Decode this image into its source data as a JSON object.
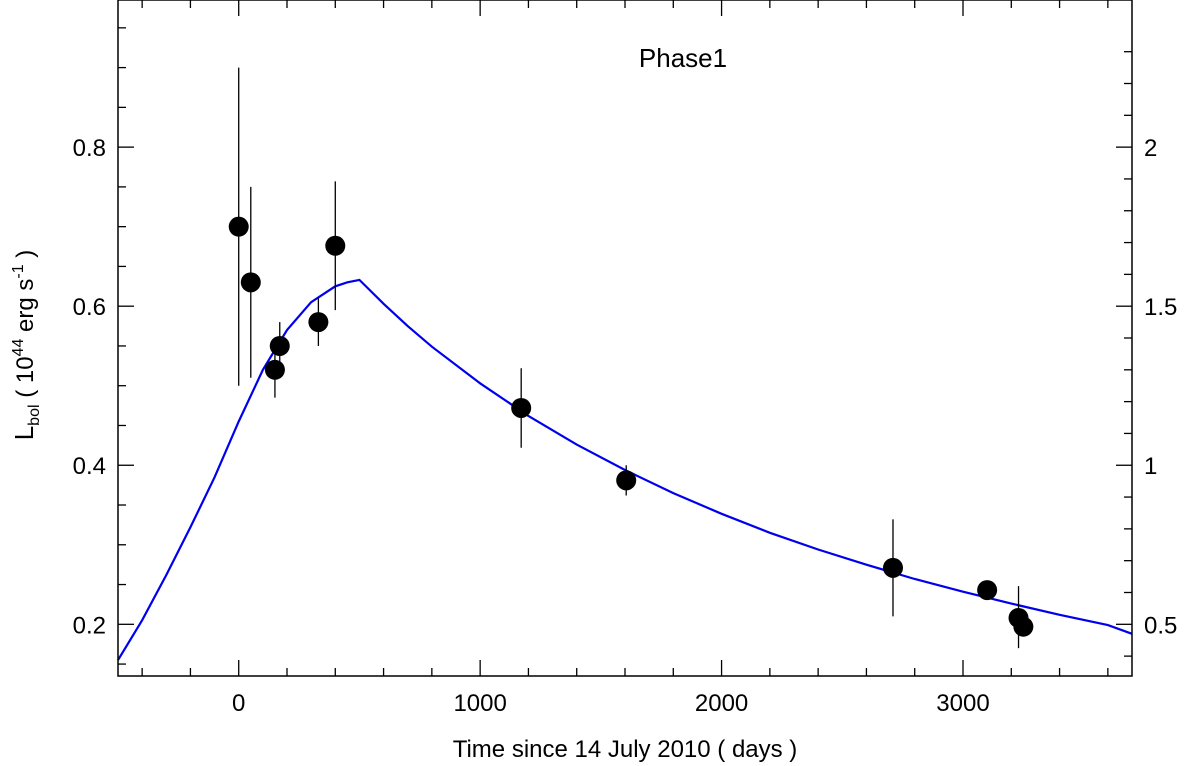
{
  "chart_data": {
    "type": "scatter",
    "title": "Phase1",
    "xlabel": "Time since 14 July 2010 ( days )",
    "ylabel": {
      "base": "L",
      "sub": "bol",
      "open": " ( 10",
      "exp": "44",
      "unit": " erg s",
      "unit_exp": "-1",
      "close": " )"
    },
    "xlim": [
      -500,
      3700
    ],
    "ylim": [
      0.135,
      0.985
    ],
    "xticks": [
      0,
      1000,
      2000,
      3000
    ],
    "xtick_labels": [
      "0",
      "1000",
      "2000",
      "3000"
    ],
    "yticks": [
      0.2,
      0.4,
      0.6,
      0.8
    ],
    "ytick_labels": [
      "0.2",
      "0.4",
      "0.6",
      "0.8"
    ],
    "y2_scale": 0.4,
    "y2ticks": [
      0.5,
      1,
      1.5,
      2
    ],
    "y2tick_labels": [
      "0.5",
      "1",
      "1.5",
      "2"
    ],
    "series": [
      {
        "name": "observations",
        "points": [
          {
            "x": 0,
            "y": 0.7,
            "ylo": 0.5,
            "yhi": 0.9
          },
          {
            "x": 50,
            "y": 0.63,
            "ylo": 0.51,
            "yhi": 0.75
          },
          {
            "x": 150,
            "y": 0.52,
            "ylo": 0.485,
            "yhi": 0.555,
            "xerr": 30
          },
          {
            "x": 170,
            "y": 0.55,
            "ylo": 0.52,
            "yhi": 0.58
          },
          {
            "x": 330,
            "y": 0.58,
            "ylo": 0.55,
            "yhi": 0.61
          },
          {
            "x": 400,
            "y": 0.676,
            "ylo": 0.595,
            "yhi": 0.757
          },
          {
            "x": 1170,
            "y": 0.472,
            "ylo": 0.422,
            "yhi": 0.522
          },
          {
            "x": 1605,
            "y": 0.381,
            "ylo": 0.362,
            "yhi": 0.4
          },
          {
            "x": 2710,
            "y": 0.271,
            "ylo": 0.21,
            "yhi": 0.332
          },
          {
            "x": 3100,
            "y": 0.243
          },
          {
            "x": 3230,
            "y": 0.208,
            "ylo": 0.17,
            "yhi": 0.248
          },
          {
            "x": 3250,
            "y": 0.197
          }
        ]
      },
      {
        "name": "model",
        "color": "#0000ee",
        "x": [
          -500,
          -400,
          -300,
          -200,
          -100,
          0,
          100,
          200,
          300,
          400,
          450,
          500,
          600,
          700,
          800,
          1000,
          1200,
          1400,
          1600,
          1800,
          2000,
          2200,
          2400,
          2600,
          2800,
          3000,
          3200,
          3400,
          3600,
          3700
        ],
        "y": [
          0.155,
          0.205,
          0.262,
          0.322,
          0.385,
          0.455,
          0.52,
          0.57,
          0.605,
          0.625,
          0.63,
          0.633,
          0.603,
          0.575,
          0.549,
          0.503,
          0.462,
          0.426,
          0.394,
          0.365,
          0.339,
          0.315,
          0.294,
          0.275,
          0.257,
          0.241,
          0.226,
          0.212,
          0.199,
          0.188
        ]
      }
    ]
  }
}
